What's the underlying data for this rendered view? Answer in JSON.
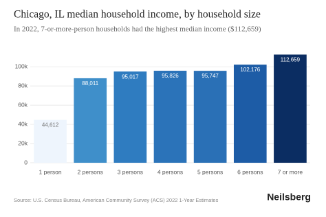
{
  "chart_data": {
    "type": "bar",
    "title": "Chicago, IL median household income, by household size",
    "subtitle": "In 2022, 7-or-more-person households had the highest median income ($112,659)",
    "categories": [
      "1 person",
      "2 persons",
      "3 persons",
      "4 persons",
      "5 persons",
      "6 persons",
      "7 or more"
    ],
    "values": [
      44612,
      88011,
      95017,
      95826,
      95747,
      102176,
      112659
    ],
    "value_labels": [
      "44,612",
      "88,011",
      "95,017",
      "95,826",
      "95,747",
      "102,176",
      "112,659"
    ],
    "colors": [
      "#eef5fd",
      "#3f8fca",
      "#2f7cc0",
      "#2b73b9",
      "#2a70b6",
      "#1d5ca6",
      "#0b2d62"
    ],
    "ylim": [
      0,
      113000
    ],
    "yticks": [
      0,
      {
        "value": 20000,
        "label": "20k"
      },
      {
        "value": 40000,
        "label": "40k"
      },
      {
        "value": 60000,
        "label": "60k"
      },
      {
        "value": 80000,
        "label": "80k"
      },
      {
        "value": 100000,
        "label": "100k"
      }
    ],
    "grid": true,
    "source": "Source: U.S. Census Bureau, American Community Survey (ACS) 2022 1-Year Estimates",
    "brand": "Neilsberg"
  }
}
